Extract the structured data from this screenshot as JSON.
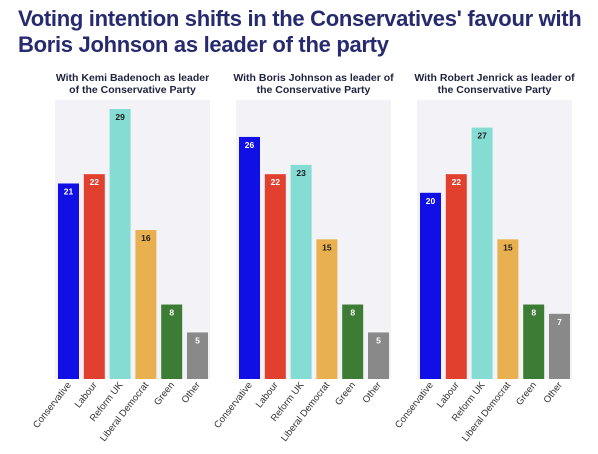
{
  "title": "Voting intention shifts in the Conservatives' favour with Boris Johnson as leader of the party",
  "chart_data": [
    {
      "type": "bar",
      "title": "With Kemi Badenoch as leader of the Conservative Party",
      "categories": [
        "Conservative",
        "Labour",
        "Reform UK",
        "Liberal Democrat",
        "Green",
        "Other"
      ],
      "values": [
        21,
        22,
        29,
        16,
        8,
        5
      ],
      "colors": [
        "#1010e6",
        "#e2402f",
        "#84dcd3",
        "#e9b04f",
        "#3c7c34",
        "#898989"
      ],
      "data_labels": true,
      "ylim": [
        0,
        29
      ]
    },
    {
      "type": "bar",
      "title": "With Boris Johnson as leader of the Conservative Party",
      "categories": [
        "Conservative",
        "Labour",
        "Reform UK",
        "Liberal Democrat",
        "Green",
        "Other"
      ],
      "values": [
        26,
        22,
        23,
        15,
        8,
        5
      ],
      "colors": [
        "#1010e6",
        "#e2402f",
        "#84dcd3",
        "#e9b04f",
        "#3c7c34",
        "#898989"
      ],
      "data_labels": true,
      "ylim": [
        0,
        29
      ]
    },
    {
      "type": "bar",
      "title": "With Robert Jenrick as leader of the Conservative Party",
      "categories": [
        "Conservative",
        "Labour",
        "Reform UK",
        "Liberal Democrat",
        "Green",
        "Other"
      ],
      "values": [
        20,
        22,
        27,
        15,
        8,
        7
      ],
      "colors": [
        "#1010e6",
        "#e2402f",
        "#84dcd3",
        "#e9b04f",
        "#3c7c34",
        "#898989"
      ],
      "data_labels": true,
      "ylim": [
        0,
        29
      ]
    }
  ]
}
